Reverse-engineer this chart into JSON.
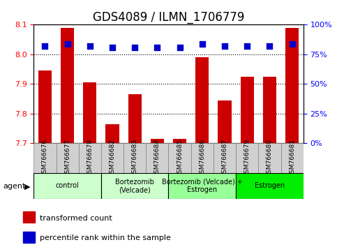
{
  "title": "GDS4089 / ILMN_1706779",
  "samples": [
    "GSM766676",
    "GSM766677",
    "GSM766678",
    "GSM766682",
    "GSM766683",
    "GSM766684",
    "GSM766685",
    "GSM766686",
    "GSM766687",
    "GSM766679",
    "GSM766680",
    "GSM766681"
  ],
  "bar_values": [
    7.945,
    8.09,
    7.905,
    7.765,
    7.865,
    7.715,
    7.715,
    7.99,
    7.845,
    7.925,
    7.925,
    8.09
  ],
  "percentile_values": [
    82,
    84,
    82,
    81,
    81,
    81,
    81,
    84,
    82,
    82,
    82,
    84
  ],
  "ylim_left": [
    7.7,
    8.1
  ],
  "ylim_right": [
    0,
    100
  ],
  "yticks_left": [
    7.7,
    7.8,
    7.9,
    8.0,
    8.1
  ],
  "yticks_right": [
    0,
    25,
    50,
    75,
    100
  ],
  "bar_color": "#cc0000",
  "dot_color": "#0000cc",
  "bar_width": 0.6,
  "groups": [
    {
      "label": "control",
      "start": 0,
      "end": 3,
      "color": "#ccffcc"
    },
    {
      "label": "Bortezomib\n(Velcade)",
      "start": 3,
      "end": 6,
      "color": "#ccffcc"
    },
    {
      "label": "Bortezomib (Velcade) +\nEstrogen",
      "start": 6,
      "end": 9,
      "color": "#99ff99"
    },
    {
      "label": "Estrogen",
      "start": 9,
      "end": 12,
      "color": "#00ee00"
    }
  ],
  "legend_items": [
    {
      "color": "#cc0000",
      "label": "transformed count"
    },
    {
      "color": "#0000cc",
      "label": "percentile rank within the sample"
    }
  ],
  "agent_label": "agent",
  "dot_size": 40,
  "dot_marker": "s",
  "grid_style": "dotted",
  "grid_color": "black",
  "title_fontsize": 12,
  "tick_fontsize": 8,
  "label_fontsize": 9
}
